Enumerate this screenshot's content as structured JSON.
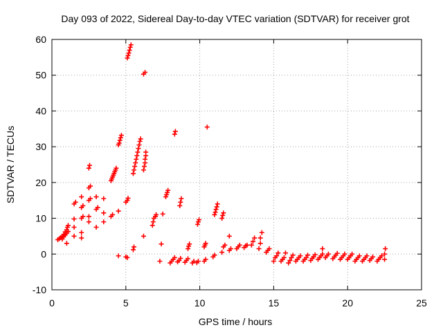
{
  "chart_data": {
    "type": "scatter",
    "title": "Day 093 of 2022, Sidereal Day-to-day VTEC variation (SDTVAR) for receiver grot",
    "xlabel": "GPS time / hours",
    "ylabel": "SDTVAR / TECUs",
    "xlim": [
      0,
      25
    ],
    "ylim": [
      -10,
      60
    ],
    "xticks": [
      0,
      5,
      10,
      15,
      20,
      25
    ],
    "yticks": [
      -10,
      0,
      10,
      20,
      30,
      40,
      50,
      60
    ],
    "grid": true,
    "marker": "+",
    "color": "#ff0000",
    "series": [
      {
        "name": "SDTVAR",
        "points": [
          [
            0.4,
            4
          ],
          [
            0.5,
            4.3
          ],
          [
            0.6,
            4.6
          ],
          [
            0.7,
            5
          ],
          [
            0.8,
            5.5
          ],
          [
            0.9,
            6.2
          ],
          [
            1.0,
            6.8
          ],
          [
            1.05,
            7.5
          ],
          [
            1.1,
            8
          ],
          [
            0.7,
            4.2
          ],
          [
            0.8,
            4.8
          ],
          [
            0.9,
            5.3
          ],
          [
            1.0,
            5.8
          ],
          [
            1.1,
            6.3
          ],
          [
            1.0,
            3
          ],
          [
            1.5,
            5
          ],
          [
            1.5,
            7.5
          ],
          [
            1.5,
            9.8
          ],
          [
            1.5,
            14
          ],
          [
            1.6,
            14.5
          ],
          [
            2.0,
            4.5
          ],
          [
            2.0,
            6
          ],
          [
            2.0,
            10
          ],
          [
            2.1,
            10.5
          ],
          [
            2.0,
            13
          ],
          [
            2.1,
            13.5
          ],
          [
            2.0,
            16
          ],
          [
            2.5,
            9
          ],
          [
            2.5,
            10.5
          ],
          [
            2.5,
            15
          ],
          [
            2.6,
            15.5
          ],
          [
            2.5,
            18.5
          ],
          [
            2.6,
            19
          ],
          [
            2.5,
            24
          ],
          [
            2.55,
            24.8
          ],
          [
            3.0,
            7.5
          ],
          [
            3.0,
            12.5
          ],
          [
            3.1,
            13
          ],
          [
            3.0,
            16
          ],
          [
            3.5,
            9
          ],
          [
            3.5,
            11.5
          ],
          [
            3.5,
            15.5
          ],
          [
            4.0,
            10.5
          ],
          [
            4.1,
            11
          ],
          [
            4.0,
            20.5
          ],
          [
            4.05,
            21
          ],
          [
            4.1,
            21.5
          ],
          [
            4.15,
            22
          ],
          [
            4.2,
            22.5
          ],
          [
            4.25,
            23
          ],
          [
            4.3,
            23.5
          ],
          [
            4.35,
            24
          ],
          [
            4.5,
            -0.5
          ],
          [
            4.5,
            12
          ],
          [
            4.5,
            30.5
          ],
          [
            4.55,
            31
          ],
          [
            4.6,
            31.8
          ],
          [
            4.65,
            32.5
          ],
          [
            4.7,
            33.2
          ],
          [
            5.0,
            -0.8
          ],
          [
            5.1,
            -1
          ],
          [
            5.0,
            14.5
          ],
          [
            5.1,
            15
          ],
          [
            5.15,
            15.6
          ],
          [
            5.1,
            54.8
          ],
          [
            5.15,
            55.5
          ],
          [
            5.2,
            56.2
          ],
          [
            5.25,
            57
          ],
          [
            5.3,
            57.8
          ],
          [
            5.35,
            58.5
          ],
          [
            5.5,
            1.2
          ],
          [
            5.55,
            2
          ],
          [
            5.5,
            22.5
          ],
          [
            5.55,
            23.5
          ],
          [
            5.6,
            24.5
          ],
          [
            5.65,
            25.5
          ],
          [
            5.7,
            26.5
          ],
          [
            5.75,
            27.5
          ],
          [
            5.8,
            28.5
          ],
          [
            5.85,
            29.5
          ],
          [
            5.9,
            30.5
          ],
          [
            5.95,
            31.5
          ],
          [
            6.0,
            32.2
          ],
          [
            6.2,
            5
          ],
          [
            6.2,
            23.5
          ],
          [
            6.25,
            24.5
          ],
          [
            6.3,
            25.5
          ],
          [
            6.3,
            26.5
          ],
          [
            6.35,
            27.5
          ],
          [
            6.35,
            28.5
          ],
          [
            6.2,
            50.3
          ],
          [
            6.3,
            50.8
          ],
          [
            6.8,
            8
          ],
          [
            6.85,
            9
          ],
          [
            6.9,
            10
          ],
          [
            7.0,
            10.5
          ],
          [
            7.05,
            11
          ],
          [
            7.3,
            -2
          ],
          [
            7.4,
            2.8
          ],
          [
            7.5,
            11.2
          ],
          [
            7.7,
            16
          ],
          [
            7.75,
            16.6
          ],
          [
            7.8,
            17.2
          ],
          [
            7.85,
            17.8
          ],
          [
            8.0,
            -2.5
          ],
          [
            8.1,
            -2
          ],
          [
            8.2,
            -1.5
          ],
          [
            8.3,
            -1
          ],
          [
            8.3,
            33.5
          ],
          [
            8.35,
            34.3
          ],
          [
            8.5,
            -2.2
          ],
          [
            8.6,
            -1.8
          ],
          [
            8.7,
            -1.2
          ],
          [
            8.65,
            13.5
          ],
          [
            8.7,
            14.5
          ],
          [
            8.75,
            15.5
          ],
          [
            9.0,
            -2.3
          ],
          [
            9.1,
            -1.8
          ],
          [
            9.2,
            -1.3
          ],
          [
            9.2,
            1.5
          ],
          [
            9.25,
            2.2
          ],
          [
            9.3,
            2.8
          ],
          [
            9.5,
            -2.5
          ],
          [
            9.6,
            -2
          ],
          [
            9.8,
            -2.4
          ],
          [
            9.9,
            -2
          ],
          [
            9.85,
            8.3
          ],
          [
            9.9,
            9
          ],
          [
            9.95,
            9.6
          ],
          [
            10.3,
            -2
          ],
          [
            10.4,
            -1.5
          ],
          [
            10.3,
            2
          ],
          [
            10.35,
            2.5
          ],
          [
            10.4,
            3
          ],
          [
            10.5,
            35.5
          ],
          [
            10.9,
            -0.8
          ],
          [
            11.0,
            -0.3
          ],
          [
            11.0,
            11
          ],
          [
            11.05,
            11.7
          ],
          [
            11.1,
            12.5
          ],
          [
            11.15,
            13.2
          ],
          [
            11.2,
            14
          ],
          [
            11.5,
            0.5
          ],
          [
            11.6,
            2
          ],
          [
            11.7,
            2.5
          ],
          [
            11.5,
            10
          ],
          [
            11.55,
            10.8
          ],
          [
            11.6,
            11.5
          ],
          [
            12.0,
            1
          ],
          [
            12.1,
            1.5
          ],
          [
            12.0,
            5
          ],
          [
            12.5,
            1.5
          ],
          [
            12.6,
            2
          ],
          [
            12.7,
            2.5
          ],
          [
            13.0,
            1.8
          ],
          [
            13.1,
            2.3
          ],
          [
            13.2,
            2.5
          ],
          [
            13.5,
            2.5
          ],
          [
            13.6,
            3.5
          ],
          [
            13.7,
            4.5
          ],
          [
            14.0,
            1.5
          ],
          [
            14.1,
            3
          ],
          [
            14.1,
            4.5
          ],
          [
            14.2,
            6
          ],
          [
            14.5,
            0.5
          ],
          [
            14.6,
            1
          ],
          [
            14.7,
            1.5
          ],
          [
            15.0,
            -2
          ],
          [
            15.1,
            -1
          ],
          [
            15.2,
            -0.5
          ],
          [
            15.3,
            0.3
          ],
          [
            15.5,
            -2
          ],
          [
            15.6,
            -1.5
          ],
          [
            15.7,
            -1
          ],
          [
            15.8,
            0.3
          ],
          [
            16.0,
            -2.5
          ],
          [
            16.1,
            -1.8
          ],
          [
            16.2,
            -1
          ],
          [
            16.3,
            -0.3
          ],
          [
            16.5,
            -2
          ],
          [
            16.6,
            -1.5
          ],
          [
            16.7,
            -1
          ],
          [
            16.8,
            -0.5
          ],
          [
            17.0,
            -2
          ],
          [
            17.1,
            -1.5
          ],
          [
            17.2,
            -1
          ],
          [
            17.3,
            -0.3
          ],
          [
            17.5,
            -1.8
          ],
          [
            17.6,
            -1.2
          ],
          [
            17.7,
            -0.8
          ],
          [
            17.8,
            -0.2
          ],
          [
            18.0,
            -1.5
          ],
          [
            18.1,
            -1
          ],
          [
            18.2,
            -0.5
          ],
          [
            18.3,
            0
          ],
          [
            18.5,
            -1
          ],
          [
            18.6,
            -0.5
          ],
          [
            18.7,
            0
          ],
          [
            18.3,
            1.5
          ],
          [
            19.0,
            -1.3
          ],
          [
            19.1,
            -0.8
          ],
          [
            19.2,
            -0.3
          ],
          [
            19.3,
            0.2
          ],
          [
            19.5,
            -1.5
          ],
          [
            19.6,
            -1
          ],
          [
            19.7,
            -0.5
          ],
          [
            19.8,
            0
          ],
          [
            20.0,
            -1.5
          ],
          [
            20.1,
            -1
          ],
          [
            20.2,
            -0.5
          ],
          [
            20.3,
            0
          ],
          [
            20.5,
            -2
          ],
          [
            20.6,
            -1.5
          ],
          [
            20.7,
            -1
          ],
          [
            20.8,
            -0.5
          ],
          [
            21.0,
            -2
          ],
          [
            21.1,
            -1.5
          ],
          [
            21.2,
            -1
          ],
          [
            21.3,
            -0.5
          ],
          [
            21.5,
            -1.8
          ],
          [
            21.6,
            -1.3
          ],
          [
            21.7,
            -0.8
          ],
          [
            22.0,
            -2
          ],
          [
            22.1,
            -1.5
          ],
          [
            22.2,
            -1
          ],
          [
            22.3,
            -0.5
          ],
          [
            22.5,
            -1.5
          ],
          [
            22.5,
            0
          ],
          [
            22.55,
            1.5
          ]
        ]
      }
    ]
  }
}
